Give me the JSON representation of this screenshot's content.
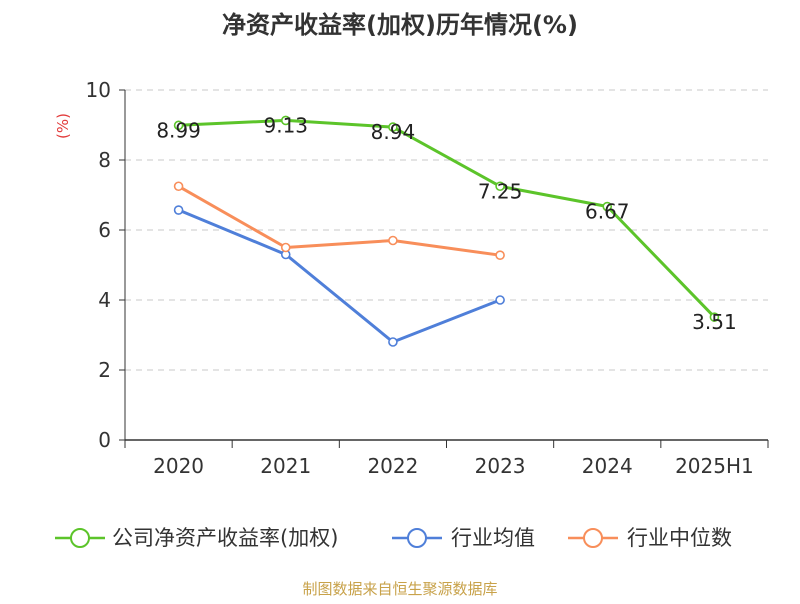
{
  "chart_data": {
    "type": "line",
    "title": "净资产收益率(加权)历年情况(%)",
    "ylabel": "(%)",
    "xlabel": "",
    "categories": [
      "2020",
      "2021",
      "2022",
      "2023",
      "2024",
      "2025H1"
    ],
    "ylim": [
      0,
      10
    ],
    "yticks": [
      0,
      2,
      4,
      6,
      8,
      10
    ],
    "grid": true,
    "legend_position": "bottom",
    "series": [
      {
        "name": "公司净资产收益率(加权)",
        "color": "#5cc42a",
        "values": [
          8.99,
          9.13,
          8.94,
          7.25,
          6.67,
          3.51
        ],
        "labels": [
          "8.99",
          "9.13",
          "8.94",
          "7.25",
          "6.67",
          "3.51"
        ]
      },
      {
        "name": "行业均值",
        "color": "#4f7fd9",
        "values": [
          6.57,
          5.3,
          2.8,
          4.0,
          null,
          null
        ]
      },
      {
        "name": "行业中位数",
        "color": "#f88e5a",
        "values": [
          7.25,
          5.5,
          5.7,
          5.28,
          null,
          null
        ]
      }
    ],
    "source": "制图数据来自恒生聚源数据库"
  }
}
